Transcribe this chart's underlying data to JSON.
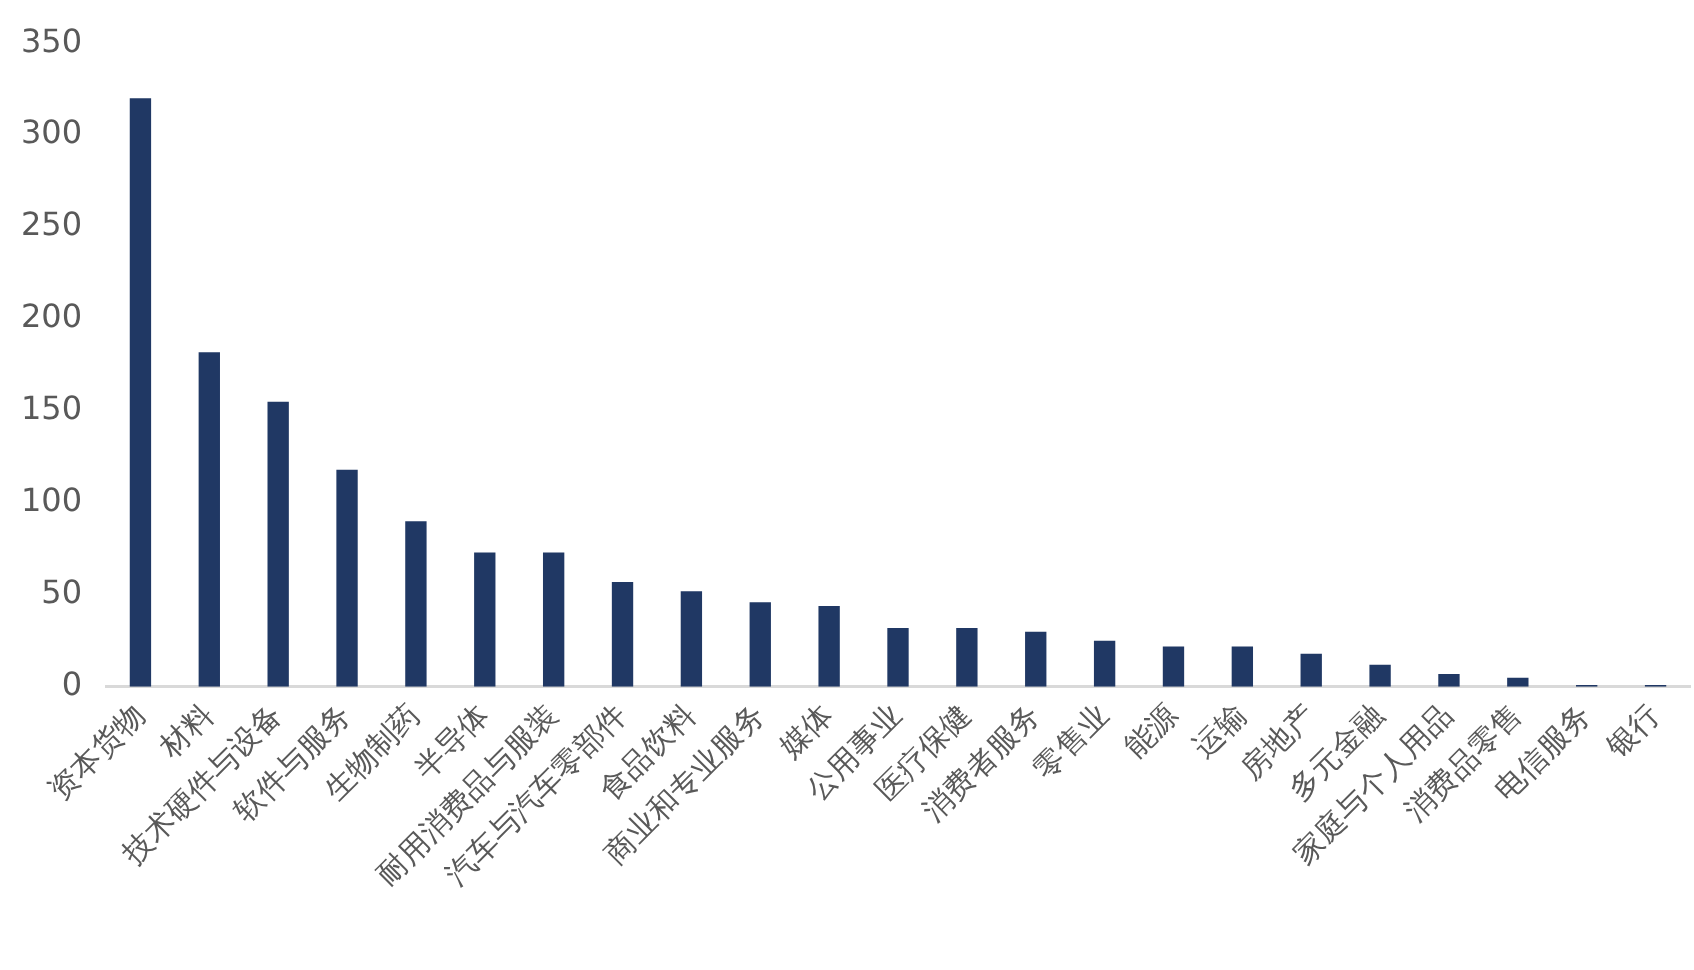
{
  "chart_data": {
    "type": "bar",
    "categories": [
      "资本货物",
      "材料",
      "技术硬件与设备",
      "软件与服务",
      "生物制药",
      "半导体",
      "耐用消费品与服装",
      "汽车与汽车零部件",
      "食品饮料",
      "商业和专业服务",
      "媒体",
      "公用事业",
      "医疗保健",
      "消费者服务",
      "零售业",
      "能源",
      "运输",
      "房地产",
      "多元金融",
      "家庭与个人用品",
      "消费品零售",
      "电信服务",
      "银行"
    ],
    "values": [
      320,
      182,
      155,
      118,
      90,
      73,
      73,
      57,
      52,
      46,
      44,
      32,
      32,
      30,
      25,
      22,
      22,
      18,
      12,
      7,
      5,
      1,
      1
    ],
    "color": "#203864",
    "ylim": [
      0,
      350
    ],
    "yticks": [
      0,
      50,
      100,
      150,
      200,
      250,
      300,
      350
    ],
    "grid": false
  }
}
